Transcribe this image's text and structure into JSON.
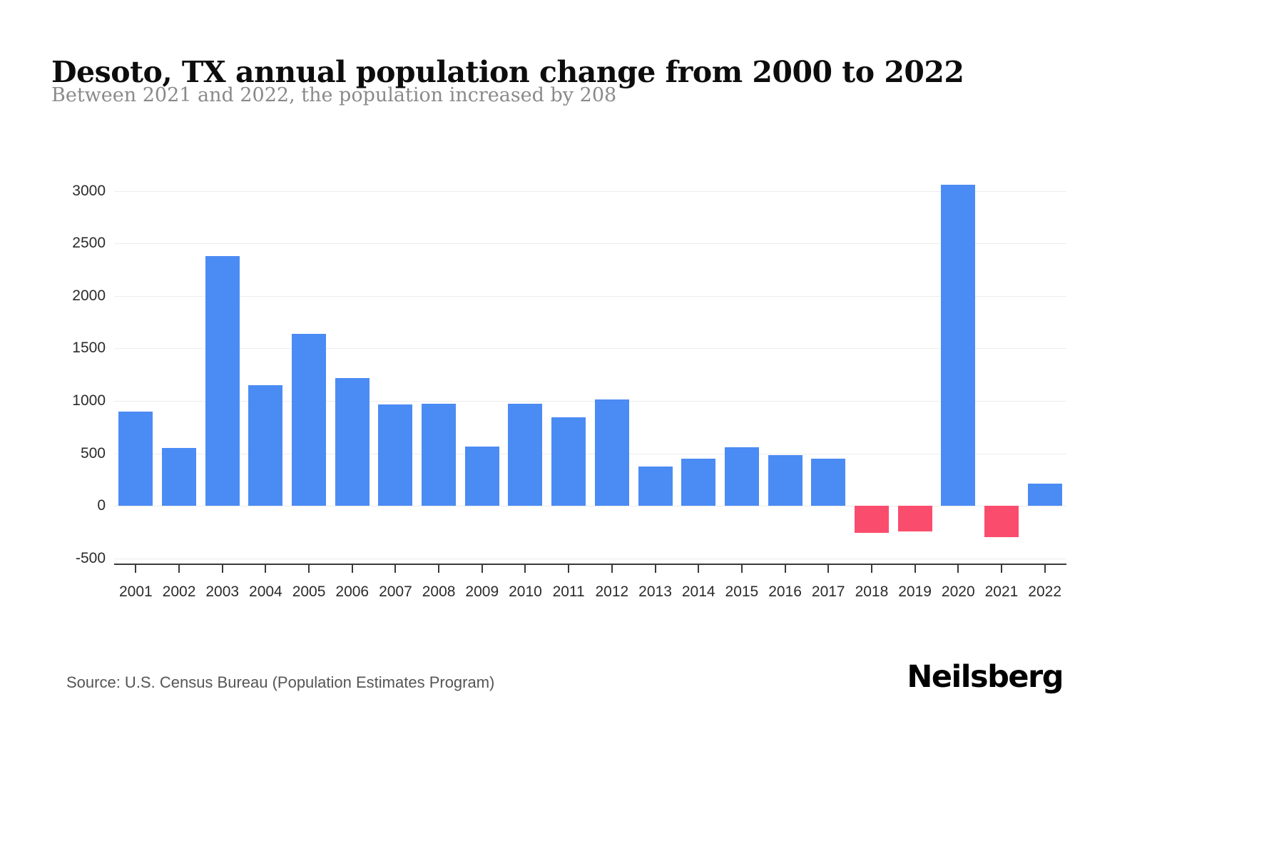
{
  "chart_data": {
    "type": "bar",
    "title": "Desoto, TX annual population change from 2000 to 2022",
    "subtitle": "Between 2021 and 2022, the population increased by 208",
    "categories": [
      "2001",
      "2002",
      "2003",
      "2004",
      "2005",
      "2006",
      "2007",
      "2008",
      "2009",
      "2010",
      "2011",
      "2012",
      "2013",
      "2014",
      "2015",
      "2016",
      "2017",
      "2018",
      "2019",
      "2020",
      "2021",
      "2022"
    ],
    "values": [
      900,
      550,
      2380,
      1150,
      1640,
      1220,
      965,
      970,
      565,
      975,
      845,
      1010,
      375,
      450,
      560,
      485,
      450,
      -255,
      -245,
      3060,
      -300,
      208
    ],
    "yticks": [
      {
        "value": 3000,
        "label": "3000"
      },
      {
        "value": 2500,
        "label": "2500"
      },
      {
        "value": 2000,
        "label": "2000"
      },
      {
        "value": 1500,
        "label": "1500"
      },
      {
        "value": 1000,
        "label": "1000"
      },
      {
        "value": 500,
        "label": "500"
      },
      {
        "value": 0,
        "label": "0"
      },
      {
        "value": -500,
        "label": "-500"
      }
    ],
    "ylim": [
      -550,
      3120
    ],
    "xlabel": "",
    "ylabel": "",
    "grid": "horizontal",
    "legend_position": "none",
    "positive_color": "#4b8bf4",
    "negative_color": "#fa4d6e"
  },
  "footer": {
    "source": "Source: U.S. Census Bureau (Population Estimates Program)",
    "brand": "Neilsberg"
  }
}
